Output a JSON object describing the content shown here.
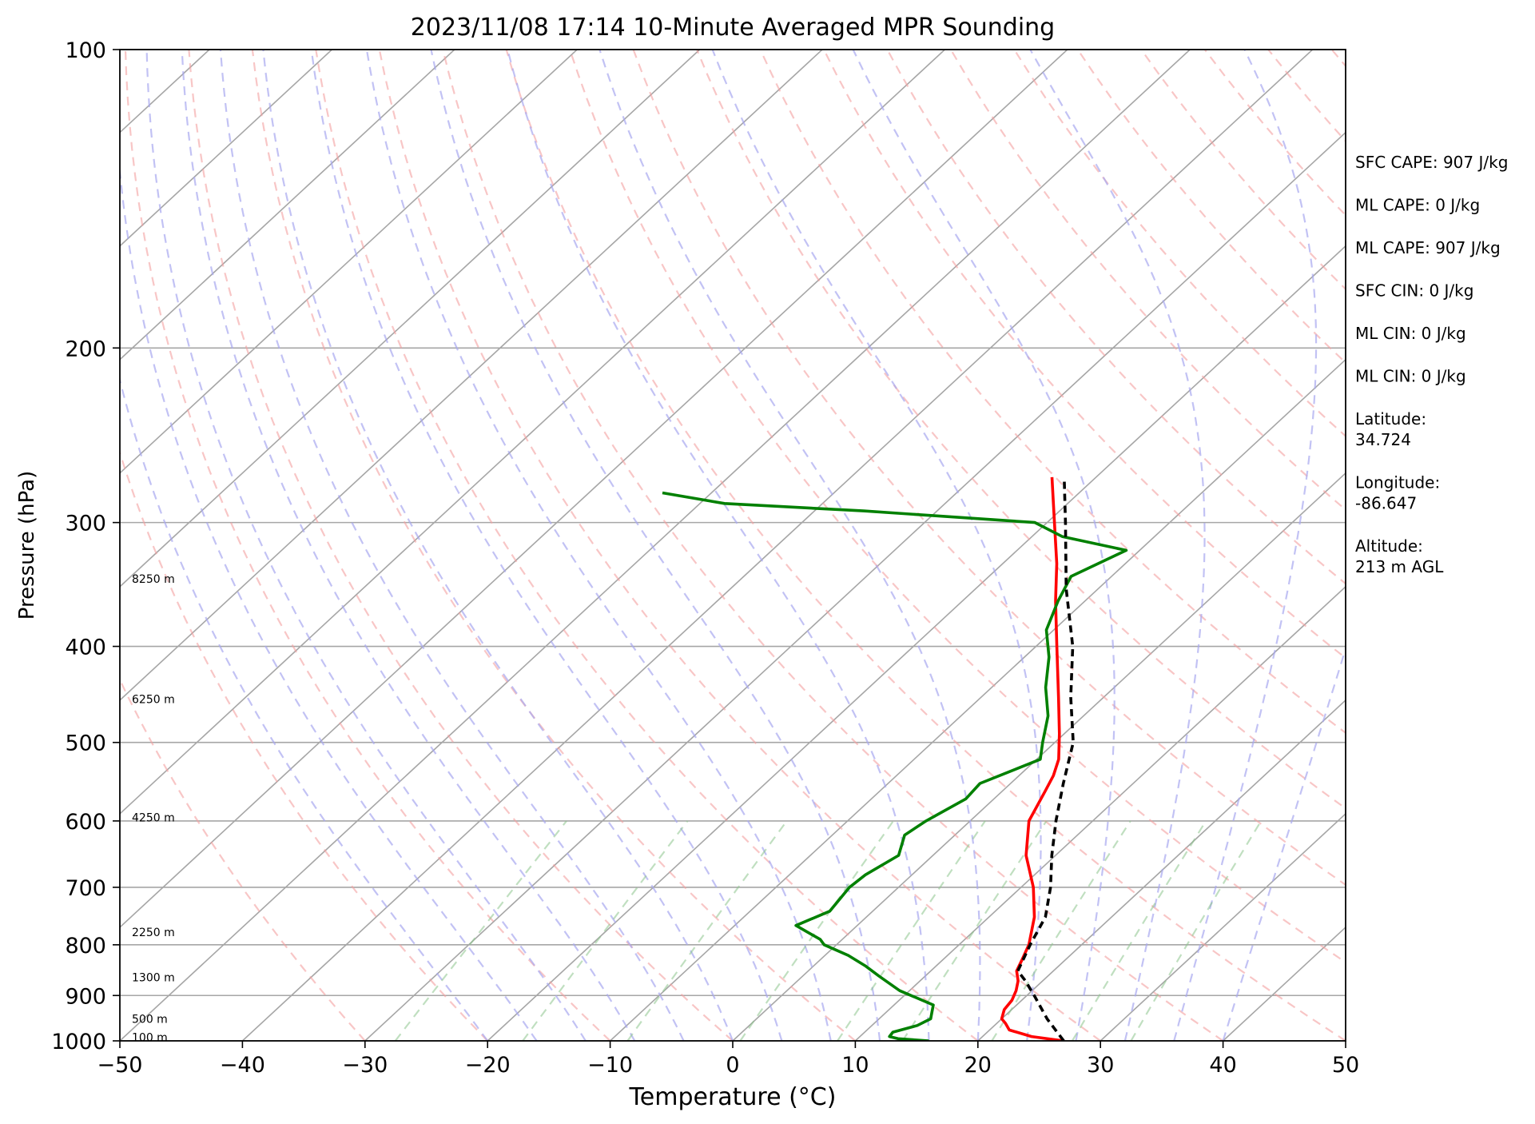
{
  "chart_data": {
    "type": "line",
    "title": "2023/11/08 17:14 10-Minute Averaged MPR Sounding",
    "xlabel": "Temperature (°C)",
    "ylabel": "Pressure (hPa)",
    "xlim": [
      -50,
      50
    ],
    "ylim": [
      1000,
      100
    ],
    "y_scale": "log",
    "skew_t": true,
    "x_ticks": [
      -50,
      -40,
      -30,
      -20,
      -10,
      0,
      10,
      20,
      30,
      40,
      50
    ],
    "x_tick_labels": [
      "−50",
      "−40",
      "−30",
      "−20",
      "−10",
      "0",
      "10",
      "20",
      "30",
      "40",
      "50"
    ],
    "y_ticks": [
      1000,
      900,
      800,
      700,
      600,
      500,
      400,
      300,
      200,
      100
    ],
    "y_tick_labels": [
      "1000",
      "900",
      "800",
      "700",
      "600",
      "500",
      "400",
      "300",
      "200",
      "100"
    ],
    "grid": true,
    "height_labels": [
      {
        "p": 992,
        "text": "100 m"
      },
      {
        "p": 950,
        "text": "500 m"
      },
      {
        "p": 863,
        "text": "1300 m"
      },
      {
        "p": 777,
        "text": "2250 m"
      },
      {
        "p": 595,
        "text": "4250 m"
      },
      {
        "p": 452,
        "text": "6250 m"
      },
      {
        "p": 342,
        "text": "8250 m"
      }
    ],
    "annotations": [
      "SFC CAPE: 907 J/kg",
      "ML CAPE: 0 J/kg",
      "ML CAPE: 907 J/kg",
      "SFC CIN: 0 J/kg",
      "ML CIN: 0 J/kg",
      "ML CIN: 0 J/kg",
      "Latitude:\n34.724",
      "Longitude:\n-86.647",
      "Altitude:\n213 m AGL"
    ],
    "series": [
      {
        "role": "temperature",
        "color": "#ff0000",
        "points": [
          [
            1000,
            27.0
          ],
          [
            990,
            24.0
          ],
          [
            975,
            21.6
          ],
          [
            960,
            20.7
          ],
          [
            950,
            20.0
          ],
          [
            930,
            19.4
          ],
          [
            910,
            19.2
          ],
          [
            890,
            18.7
          ],
          [
            870,
            18.0
          ],
          [
            850,
            17.0
          ],
          [
            830,
            16.5
          ],
          [
            800,
            15.7
          ],
          [
            750,
            13.7
          ],
          [
            700,
            11.0
          ],
          [
            650,
            7.6
          ],
          [
            600,
            4.8
          ],
          [
            560,
            3.5
          ],
          [
            540,
            2.8
          ],
          [
            520,
            1.8
          ],
          [
            490,
            -0.4
          ],
          [
            450,
            -3.7
          ],
          [
            400,
            -8.3
          ],
          [
            360,
            -12.4
          ],
          [
            330,
            -15.6
          ],
          [
            300,
            -19.4
          ],
          [
            270,
            -23.6
          ]
        ]
      },
      {
        "role": "dewpoint",
        "color": "#008000",
        "points": [
          [
            1000,
            16.0
          ],
          [
            995,
            13.3
          ],
          [
            990,
            12.4
          ],
          [
            980,
            12.3
          ],
          [
            965,
            13.7
          ],
          [
            950,
            14.2
          ],
          [
            920,
            13.2
          ],
          [
            890,
            9.2
          ],
          [
            860,
            6.2
          ],
          [
            840,
            4.2
          ],
          [
            820,
            1.9
          ],
          [
            800,
            -1.0
          ],
          [
            790,
            -1.8
          ],
          [
            765,
            -5.0
          ],
          [
            740,
            -3.5
          ],
          [
            700,
            -4.0
          ],
          [
            680,
            -3.8
          ],
          [
            650,
            -2.8
          ],
          [
            620,
            -4.1
          ],
          [
            600,
            -3.6
          ],
          [
            570,
            -2.3
          ],
          [
            550,
            -2.5
          ],
          [
            520,
            0.3
          ],
          [
            500,
            -1.0
          ],
          [
            470,
            -2.9
          ],
          [
            440,
            -5.6
          ],
          [
            410,
            -8.0
          ],
          [
            385,
            -10.6
          ],
          [
            360,
            -12.2
          ],
          [
            340,
            -13.3
          ],
          [
            320,
            -11.1
          ],
          [
            310,
            -17.5
          ],
          [
            300,
            -21.0
          ],
          [
            292,
            -36.0
          ],
          [
            287,
            -48.0
          ],
          [
            280,
            -54.0
          ]
        ]
      },
      {
        "role": "parcel",
        "color": "#000000",
        "dash": "9,6",
        "points": [
          [
            1000,
            27.0
          ],
          [
            950,
            23.7
          ],
          [
            900,
            20.6
          ],
          [
            870,
            18.6
          ],
          [
            850,
            17.1
          ],
          [
            800,
            15.8
          ],
          [
            750,
            14.6
          ],
          [
            700,
            12.4
          ],
          [
            650,
            9.7
          ],
          [
            600,
            7.0
          ],
          [
            550,
            4.3
          ],
          [
            500,
            1.5
          ],
          [
            450,
            -2.7
          ],
          [
            400,
            -7.0
          ],
          [
            350,
            -12.6
          ],
          [
            300,
            -18.5
          ],
          [
            270,
            -22.6
          ]
        ]
      }
    ]
  }
}
